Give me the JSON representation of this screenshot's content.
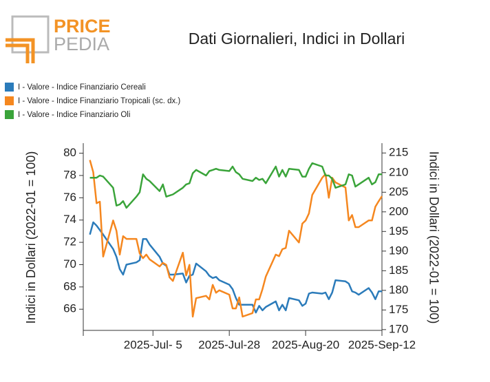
{
  "logo": [
    "PRICE",
    "PEDIA"
  ],
  "chart_data": {
    "type": "line",
    "title": "Dati Giornalieri, Indici in Dollari",
    "ylabel": "Indici in Dollari (2022-01 = 100)",
    "y2label": "Indici in Dollari (2022-01 = 100)",
    "x": [
      "2025-06-16",
      "2025-06-17",
      "2025-06-18",
      "2025-06-19",
      "2025-06-20",
      "2025-06-23",
      "2025-06-24",
      "2025-06-25",
      "2025-06-26",
      "2025-06-27",
      "2025-06-30",
      "2025-07-01",
      "2025-07-02",
      "2025-07-03",
      "2025-07-04",
      "2025-07-07",
      "2025-07-08",
      "2025-07-09",
      "2025-07-10",
      "2025-07-11",
      "2025-07-14",
      "2025-07-15",
      "2025-07-16",
      "2025-07-17",
      "2025-07-18",
      "2025-07-21",
      "2025-07-22",
      "2025-07-23",
      "2025-07-24",
      "2025-07-25",
      "2025-07-28",
      "2025-07-29",
      "2025-07-30",
      "2025-07-31",
      "2025-08-01",
      "2025-08-04",
      "2025-08-05",
      "2025-08-06",
      "2025-08-07",
      "2025-08-08",
      "2025-08-11",
      "2025-08-12",
      "2025-08-13",
      "2025-08-14",
      "2025-08-15",
      "2025-08-18",
      "2025-08-19",
      "2025-08-20",
      "2025-08-21",
      "2025-08-22",
      "2025-08-25",
      "2025-08-26",
      "2025-08-27",
      "2025-08-28",
      "2025-08-29",
      "2025-09-01",
      "2025-09-02",
      "2025-09-03",
      "2025-09-04",
      "2025-09-05",
      "2025-09-08",
      "2025-09-09",
      "2025-09-10",
      "2025-09-11",
      "2025-09-12"
    ],
    "xlim": [
      "2025-06-14",
      "2025-09-12"
    ],
    "xticks": [
      {
        "value": "2025-07-05",
        "label": "2025-Jul- 5"
      },
      {
        "value": "2025-07-28",
        "label": "2025-Jul-28"
      },
      {
        "value": "2025-08-20",
        "label": "2025-Aug-20"
      },
      {
        "value": "2025-09-12",
        "label": "2025-Sep-12"
      }
    ],
    "ylim": [
      64.1,
      80.9
    ],
    "yticks": [
      66,
      68,
      70,
      72,
      74,
      76,
      78,
      80
    ],
    "y2lim": [
      169.8,
      217.5
    ],
    "y2ticks": [
      170,
      175,
      180,
      185,
      190,
      195,
      200,
      205,
      210,
      215
    ],
    "series": [
      {
        "name": "I - Valore - Indice Finanziario Cereali",
        "color": "#2b7bba",
        "axis": "y",
        "values": [
          72.7,
          73.8,
          73.5,
          73.1,
          72.7,
          71.4,
          70.7,
          69.6,
          69.1,
          70.0,
          70.2,
          70.4,
          72.3,
          72.3,
          71.8,
          70.7,
          70.1,
          69.9,
          69.1,
          69.1,
          69.2,
          68.4,
          69.0,
          69.1,
          70.1,
          69.4,
          69.0,
          68.8,
          68.9,
          68.6,
          68.2,
          67.8,
          67.0,
          66.4,
          66.4,
          66.4,
          65.7,
          66.3,
          65.9,
          66.2,
          66.7,
          65.9,
          66.4,
          65.9,
          67.0,
          66.8,
          66.3,
          66.5,
          67.4,
          67.5,
          67.4,
          67.5,
          66.9,
          67.5,
          68.6,
          68.5,
          68.3,
          67.6,
          67.5,
          67.3,
          67.9,
          67.5,
          66.9,
          67.6,
          67.6
        ]
      },
      {
        "name": "I - Valore - Indice Finanziario Tropicali (sc. dx.)",
        "color": "#f5871f",
        "axis": "y2",
        "values": [
          213.2,
          210.1,
          202.2,
          202.6,
          188.6,
          197.8,
          195.2,
          189.1,
          193.8,
          193.1,
          193.1,
          189.4,
          188.2,
          189.1,
          187.9,
          186.1,
          187.0,
          186.5,
          183.3,
          182.4,
          189.6,
          183.8,
          186.5,
          173.3,
          178.0,
          178.6,
          177.7,
          181.4,
          179.4,
          180.0,
          178.9,
          175.4,
          175.4,
          178.2,
          173.3,
          174.2,
          177.7,
          177.7,
          180.3,
          183.5,
          189.1,
          188.7,
          190.5,
          190.8,
          195.2,
          192.2,
          197.0,
          197.8,
          199.6,
          204.3,
          208.7,
          209.6,
          203.6,
          208.7,
          207.5,
          206.2,
          197.8,
          199.2,
          196.1,
          196.1,
          197.8,
          197.8,
          201.3,
          202.7,
          204.0
        ]
      },
      {
        "name": "I - Valore - Indice Finanziario Oli",
        "color": "#3aa43a",
        "axis": "y",
        "values": [
          77.8,
          77.8,
          77.8,
          78.0,
          77.9,
          76.9,
          75.3,
          75.4,
          75.7,
          75.1,
          76.1,
          76.5,
          78.1,
          77.7,
          77.5,
          76.6,
          77.2,
          76.1,
          76.2,
          76.3,
          76.9,
          77.2,
          77.3,
          78.2,
          78.5,
          78.0,
          78.4,
          78.5,
          78.6,
          78.5,
          78.4,
          78.8,
          78.3,
          78.1,
          77.7,
          77.5,
          77.8,
          77.6,
          77.7,
          77.3,
          78.8,
          77.9,
          78.5,
          77.9,
          78.6,
          78.5,
          77.9,
          77.9,
          78.6,
          79.1,
          78.8,
          78.0,
          78.0,
          77.7,
          76.9,
          77.2,
          78.1,
          78.0,
          77.0,
          77.2,
          77.8,
          77.2,
          77.4,
          78.1,
          78.1
        ]
      }
    ]
  }
}
